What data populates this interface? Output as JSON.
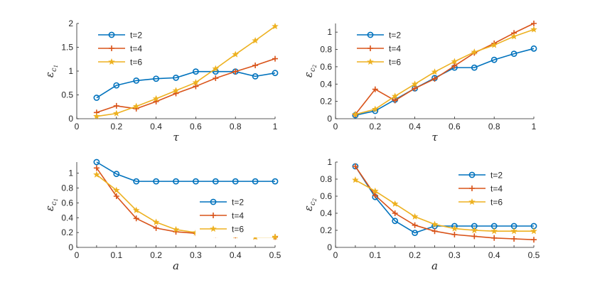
{
  "colors": {
    "t2": "#0072BD",
    "t4": "#D95319",
    "t6": "#EDB120",
    "axis": "#262626",
    "background": "#ffffff"
  },
  "chart_data": [
    {
      "type": "line",
      "position": "top-left",
      "xlabel": "τ",
      "ylabel": {
        "base": "ε",
        "sub": "c",
        "subsub": "1"
      },
      "xlim": [
        0,
        1
      ],
      "ylim": [
        0,
        2
      ],
      "xticks": [
        0,
        0.2,
        0.4,
        0.6,
        0.8,
        1
      ],
      "xtick_labels": [
        "0",
        "0.2",
        "0.4",
        "0.6",
        "0.8",
        "1"
      ],
      "yticks": [
        0,
        0.5,
        1,
        1.5,
        2
      ],
      "ytick_labels": [
        "0",
        "0.5",
        "1",
        "1.5",
        "2"
      ],
      "legend_location": "top-left",
      "x": [
        0.1,
        0.2,
        0.3,
        0.4,
        0.5,
        0.6,
        0.7,
        0.8,
        0.9,
        1.0
      ],
      "series": [
        {
          "name": "t=2",
          "marker": "circle",
          "color_key": "t2",
          "values": [
            0.44,
            0.7,
            0.8,
            0.84,
            0.86,
            0.99,
            0.99,
            0.99,
            0.89,
            0.96
          ]
        },
        {
          "name": "t=4",
          "marker": "plus",
          "color_key": "t4",
          "values": [
            0.13,
            0.27,
            0.21,
            0.36,
            0.53,
            0.68,
            0.85,
            0.99,
            1.12,
            1.26
          ]
        },
        {
          "name": "t=6",
          "marker": "star",
          "color_key": "t6",
          "values": [
            0.05,
            0.11,
            0.26,
            0.42,
            0.59,
            0.76,
            1.05,
            1.35,
            1.64,
            1.94
          ]
        }
      ]
    },
    {
      "type": "line",
      "position": "top-right",
      "xlabel": "τ",
      "ylabel": {
        "base": "ε",
        "sub": "c",
        "subsub": "2"
      },
      "xlim": [
        0,
        1
      ],
      "ylim": [
        0,
        1.1
      ],
      "xticks": [
        0,
        0.2,
        0.4,
        0.6,
        0.8,
        1
      ],
      "xtick_labels": [
        "0",
        "0.2",
        "0.4",
        "0.6",
        "0.8",
        "1"
      ],
      "yticks": [
        0,
        0.2,
        0.4,
        0.6,
        0.8,
        1
      ],
      "ytick_labels": [
        "0",
        "0.2",
        "0.4",
        "0.6",
        "0.8",
        "1"
      ],
      "legend_location": "top-left",
      "x": [
        0.1,
        0.2,
        0.3,
        0.4,
        0.5,
        0.6,
        0.7,
        0.8,
        0.9,
        1.0
      ],
      "series": [
        {
          "name": "t=2",
          "marker": "circle",
          "color_key": "t2",
          "values": [
            0.04,
            0.09,
            0.22,
            0.35,
            0.47,
            0.59,
            0.59,
            0.68,
            0.75,
            0.81
          ]
        },
        {
          "name": "t=4",
          "marker": "plus",
          "color_key": "t4",
          "values": [
            0.05,
            0.34,
            0.21,
            0.35,
            0.46,
            0.61,
            0.76,
            0.87,
            0.99,
            1.1
          ]
        },
        {
          "name": "t=6",
          "marker": "star",
          "color_key": "t6",
          "values": [
            0.05,
            0.11,
            0.26,
            0.4,
            0.54,
            0.66,
            0.77,
            0.85,
            0.95,
            1.03
          ]
        }
      ]
    },
    {
      "type": "line",
      "position": "bottom-left",
      "xlabel": "a",
      "ylabel": {
        "base": "ε",
        "sub": "c",
        "subsub": "1"
      },
      "xlim": [
        0,
        0.5
      ],
      "ylim": [
        0,
        1.15
      ],
      "xticks": [
        0,
        0.05,
        0.1,
        0.15,
        0.2,
        0.25,
        0.3,
        0.35,
        0.4,
        0.45,
        0.5
      ],
      "xtick_labels": [
        "0",
        "",
        "0.1",
        "",
        "0.2",
        "",
        "0.3",
        "",
        "0.4",
        "",
        "0.5"
      ],
      "yticks": [
        0,
        0.2,
        0.4,
        0.6,
        0.8,
        1
      ],
      "ytick_labels": [
        "0",
        "0.2",
        "0.4",
        "0.6",
        "0.8",
        "1"
      ],
      "legend_location": "middle-right",
      "x": [
        0.05,
        0.1,
        0.15,
        0.2,
        0.25,
        0.3,
        0.35,
        0.4,
        0.45,
        0.5
      ],
      "series": [
        {
          "name": "t=2",
          "marker": "circle",
          "color_key": "t2",
          "values": [
            1.15,
            0.99,
            0.89,
            0.89,
            0.89,
            0.89,
            0.89,
            0.89,
            0.89,
            0.89
          ]
        },
        {
          "name": "t=4",
          "marker": "plus",
          "color_key": "t4",
          "values": [
            1.07,
            0.69,
            0.39,
            0.26,
            0.21,
            0.19,
            0.17,
            0.16,
            0.15,
            0.14
          ]
        },
        {
          "name": "t=6",
          "marker": "star",
          "color_key": "t6",
          "values": [
            0.98,
            0.77,
            0.5,
            0.34,
            0.24,
            0.2,
            0.17,
            0.16,
            0.14,
            0.14
          ]
        }
      ]
    },
    {
      "type": "line",
      "position": "bottom-right",
      "xlabel": "a",
      "ylabel": {
        "base": "ε",
        "sub": "c",
        "subsub": "2"
      },
      "xlim": [
        0,
        0.5
      ],
      "ylim": [
        0,
        1
      ],
      "xticks": [
        0,
        0.05,
        0.1,
        0.15,
        0.2,
        0.25,
        0.3,
        0.35,
        0.4,
        0.45,
        0.5
      ],
      "xtick_labels": [
        "0",
        "",
        "0.1",
        "",
        "0.2",
        "",
        "0.3",
        "",
        "0.4",
        "",
        "0.5"
      ],
      "yticks": [
        0,
        0.2,
        0.4,
        0.6,
        0.8,
        1
      ],
      "ytick_labels": [
        "0",
        "0.2",
        "0.4",
        "0.6",
        "0.8",
        "1"
      ],
      "legend_location": "top-right",
      "x": [
        0.05,
        0.1,
        0.15,
        0.2,
        0.25,
        0.3,
        0.35,
        0.4,
        0.45,
        0.5
      ],
      "series": [
        {
          "name": "t=2",
          "marker": "circle",
          "color_key": "t2",
          "values": [
            0.95,
            0.59,
            0.31,
            0.17,
            0.25,
            0.25,
            0.25,
            0.25,
            0.25,
            0.25
          ]
        },
        {
          "name": "t=4",
          "marker": "plus",
          "color_key": "t4",
          "values": [
            0.95,
            0.61,
            0.4,
            0.26,
            0.19,
            0.15,
            0.13,
            0.11,
            0.1,
            0.09
          ]
        },
        {
          "name": "t=6",
          "marker": "star",
          "color_key": "t6",
          "values": [
            0.79,
            0.66,
            0.51,
            0.36,
            0.27,
            0.22,
            0.2,
            0.19,
            0.19,
            0.19
          ]
        }
      ]
    }
  ]
}
